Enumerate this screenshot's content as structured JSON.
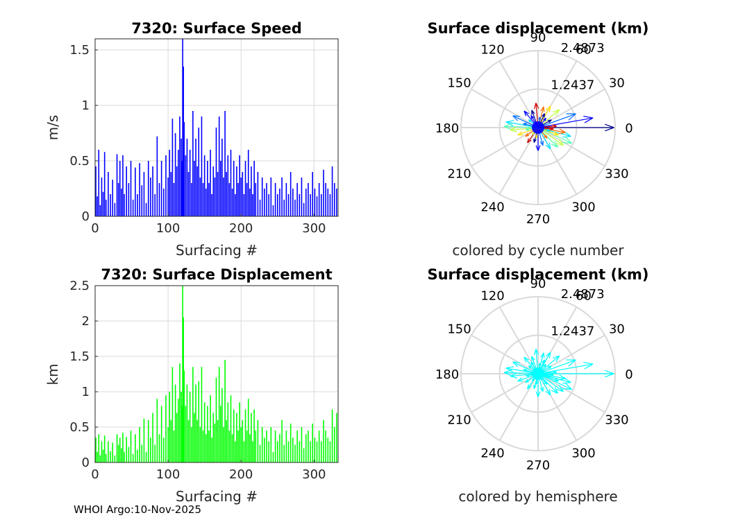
{
  "footer": "WHOI Argo:10-Nov-2025",
  "colors": {
    "speed_bars": "#0000ff",
    "displacement_bars": "#00ff00",
    "hemisphere_arrows": "#00ffff",
    "grid": "#d9d9d9"
  },
  "chart_data": [
    {
      "type": "bar",
      "title": "7320: Surface Speed",
      "xlabel": "Surfacing #",
      "ylabel": "m/s",
      "xlim": [
        0,
        333
      ],
      "ylim": [
        0,
        1.6
      ],
      "xticks": [
        0,
        100,
        200,
        300
      ],
      "yticks": [
        0,
        0.5,
        1,
        1.5
      ],
      "grid": true,
      "x": [
        1,
        3,
        5,
        7,
        9,
        11,
        13,
        15,
        18,
        21,
        24,
        27,
        30,
        32,
        34,
        36,
        38,
        40,
        43,
        46,
        49,
        52,
        55,
        58,
        61,
        64,
        67,
        70,
        73,
        76,
        79,
        82,
        85,
        88,
        91,
        94,
        97,
        100,
        102,
        104,
        106,
        108,
        110,
        112,
        114,
        116,
        118,
        119,
        120,
        121,
        122,
        124,
        126,
        128,
        130,
        132,
        134,
        136,
        138,
        140,
        142,
        144,
        146,
        148,
        150,
        152,
        154,
        156,
        158,
        160,
        162,
        164,
        166,
        168,
        170,
        172,
        174,
        176,
        178,
        180,
        182,
        184,
        186,
        188,
        190,
        192,
        194,
        196,
        198,
        200,
        202,
        204,
        206,
        208,
        210,
        212,
        214,
        216,
        218,
        220,
        223,
        226,
        229,
        232,
        235,
        238,
        241,
        244,
        247,
        250,
        253,
        256,
        259,
        262,
        265,
        268,
        271,
        274,
        277,
        280,
        283,
        286,
        289,
        292,
        295,
        298,
        301,
        304,
        307,
        310,
        313,
        316,
        319,
        322,
        325,
        328,
        331
      ],
      "values": [
        0.45,
        0.18,
        0.6,
        0.1,
        0.35,
        0.22,
        0.58,
        0.15,
        0.4,
        0.2,
        0.33,
        0.12,
        0.56,
        0.3,
        0.5,
        0.25,
        0.55,
        0.2,
        0.45,
        0.3,
        0.5,
        0.15,
        0.44,
        0.2,
        0.48,
        0.28,
        0.4,
        0.12,
        0.5,
        0.35,
        0.45,
        0.2,
        0.72,
        0.3,
        0.5,
        0.25,
        0.55,
        0.35,
        0.6,
        0.4,
        0.88,
        0.3,
        0.75,
        0.45,
        0.6,
        0.9,
        0.7,
        0.5,
        1.6,
        1.35,
        0.85,
        0.55,
        0.7,
        0.4,
        0.6,
        0.3,
        0.95,
        0.5,
        0.7,
        0.45,
        0.8,
        0.35,
        0.9,
        0.3,
        0.55,
        0.25,
        0.5,
        0.3,
        0.6,
        0.2,
        0.45,
        0.35,
        0.8,
        0.4,
        0.9,
        0.5,
        0.7,
        0.35,
        0.95,
        0.4,
        0.55,
        0.3,
        0.6,
        0.25,
        0.5,
        0.2,
        0.45,
        0.3,
        0.55,
        0.35,
        0.4,
        0.2,
        0.5,
        0.3,
        0.6,
        0.25,
        0.45,
        0.2,
        0.5,
        0.3,
        0.4,
        0.15,
        0.35,
        0.25,
        0.3,
        0.2,
        0.35,
        0.1,
        0.3,
        0.2,
        0.25,
        0.35,
        0.15,
        0.3,
        0.2,
        0.4,
        0.25,
        0.15,
        0.3,
        0.2,
        0.35,
        0.12,
        0.25,
        0.3,
        0.2,
        0.4,
        0.25,
        0.18,
        0.3,
        0.2,
        0.42,
        0.3,
        0.25,
        0.2,
        0.45,
        0.3,
        0.25
      ]
    },
    {
      "type": "bar",
      "title": "7320: Surface Displacement",
      "xlabel": "Surfacing #",
      "ylabel": "km",
      "xlim": [
        0,
        333
      ],
      "ylim": [
        0,
        2.5
      ],
      "xticks": [
        0,
        100,
        200,
        300
      ],
      "yticks": [
        0,
        0.5,
        1,
        1.5,
        2,
        2.5
      ],
      "grid": true,
      "x": [
        1,
        3,
        5,
        7,
        9,
        11,
        13,
        15,
        18,
        21,
        24,
        27,
        30,
        32,
        34,
        36,
        38,
        40,
        43,
        46,
        49,
        52,
        55,
        58,
        61,
        64,
        67,
        70,
        73,
        76,
        79,
        82,
        85,
        88,
        91,
        94,
        97,
        100,
        102,
        104,
        106,
        108,
        110,
        112,
        114,
        116,
        118,
        119,
        120,
        121,
        122,
        124,
        126,
        128,
        130,
        132,
        134,
        136,
        138,
        140,
        142,
        144,
        146,
        148,
        150,
        152,
        154,
        156,
        158,
        160,
        162,
        164,
        166,
        168,
        170,
        172,
        174,
        176,
        178,
        180,
        182,
        184,
        186,
        188,
        190,
        192,
        194,
        196,
        198,
        200,
        202,
        204,
        206,
        208,
        210,
        212,
        214,
        216,
        218,
        220,
        223,
        226,
        229,
        232,
        235,
        238,
        241,
        244,
        247,
        250,
        253,
        256,
        259,
        262,
        265,
        268,
        271,
        274,
        277,
        280,
        283,
        286,
        289,
        292,
        295,
        298,
        301,
        304,
        307,
        310,
        313,
        316,
        319,
        322,
        325,
        328,
        331
      ],
      "values": [
        0.35,
        0.15,
        0.4,
        0.1,
        0.3,
        0.18,
        0.38,
        0.12,
        0.3,
        0.16,
        0.28,
        0.1,
        0.4,
        0.25,
        0.35,
        0.2,
        0.42,
        0.15,
        0.36,
        0.22,
        0.45,
        0.12,
        0.4,
        0.18,
        0.5,
        0.25,
        0.62,
        0.15,
        0.6,
        0.35,
        0.7,
        0.25,
        0.9,
        0.4,
        0.8,
        0.35,
        0.95,
        0.5,
        1.0,
        0.6,
        1.35,
        0.45,
        1.1,
        0.7,
        0.9,
        1.4,
        1.0,
        0.8,
        2.5,
        2.05,
        1.3,
        0.8,
        1.1,
        0.6,
        1.0,
        0.5,
        1.35,
        0.7,
        1.1,
        0.6,
        1.15,
        0.5,
        1.35,
        0.45,
        0.85,
        0.4,
        0.8,
        0.45,
        0.95,
        0.35,
        0.7,
        0.55,
        1.2,
        0.6,
        1.35,
        0.8,
        1.05,
        0.5,
        1.45,
        0.6,
        0.85,
        0.45,
        0.95,
        0.4,
        0.75,
        0.3,
        0.7,
        0.45,
        0.85,
        0.5,
        0.6,
        0.3,
        0.75,
        0.45,
        0.9,
        0.4,
        0.7,
        0.3,
        0.75,
        0.45,
        0.6,
        0.25,
        0.5,
        0.35,
        0.45,
        0.3,
        0.5,
        0.15,
        0.45,
        0.3,
        0.4,
        0.6,
        0.25,
        0.45,
        0.3,
        0.55,
        0.35,
        0.25,
        0.45,
        0.3,
        0.5,
        0.2,
        0.4,
        0.45,
        0.3,
        0.55,
        0.35,
        0.3,
        0.45,
        0.3,
        0.6,
        0.45,
        0.35,
        0.3,
        0.75,
        0.5,
        0.7
      ]
    },
    {
      "type": "scatter",
      "subtype": "polar-compass",
      "title": "Surface displacement (km)",
      "caption": "colored by cycle number",
      "rlim": [
        0,
        2.4873
      ],
      "rticks": [
        "1.2437",
        "2.4873"
      ],
      "thetaticks": [
        "0",
        "30",
        "60",
        "90",
        "120",
        "150",
        "180",
        "210",
        "240",
        "270",
        "300",
        "330"
      ],
      "arrows_deg_km": [
        [
          0,
          2.45
        ],
        [
          10,
          1.8
        ],
        [
          20,
          1.3
        ],
        [
          -15,
          1.1
        ],
        [
          -25,
          1.2
        ],
        [
          40,
          0.9
        ],
        [
          60,
          0.8
        ],
        [
          75,
          0.7
        ],
        [
          95,
          0.8
        ],
        [
          110,
          0.6
        ],
        [
          130,
          0.7
        ],
        [
          155,
          0.9
        ],
        [
          170,
          1.05
        ],
        [
          178,
          1.1
        ],
        [
          185,
          0.9
        ],
        [
          200,
          0.7
        ],
        [
          215,
          0.5
        ],
        [
          235,
          0.6
        ],
        [
          255,
          0.5
        ],
        [
          270,
          0.75
        ],
        [
          285,
          0.6
        ],
        [
          300,
          0.8
        ],
        [
          315,
          0.9
        ],
        [
          325,
          1.0
        ],
        [
          340,
          0.7
        ],
        [
          350,
          0.9
        ],
        [
          5,
          0.6
        ],
        [
          30,
          0.5
        ],
        [
          50,
          0.4
        ],
        [
          80,
          0.35
        ],
        [
          140,
          0.4
        ],
        [
          190,
          0.4
        ],
        [
          230,
          0.3
        ],
        [
          260,
          0.35
        ],
        [
          310,
          0.45
        ],
        [
          355,
          0.5
        ],
        [
          65,
          0.5
        ],
        [
          120,
          0.45
        ],
        [
          165,
          0.5
        ],
        [
          345,
          0.4
        ]
      ],
      "palette": [
        "#00008f",
        "#0000ff",
        "#0070ff",
        "#00dfff",
        "#50ffaf",
        "#bfff40",
        "#ffdf00",
        "#ff7000",
        "#d00000"
      ]
    },
    {
      "type": "scatter",
      "subtype": "polar-compass",
      "title": "Surface displacement (km)",
      "caption": "colored by hemisphere",
      "rlim": [
        0,
        2.4873
      ],
      "rticks": [
        "1.2437",
        "2.4873"
      ],
      "thetaticks": [
        "0",
        "30",
        "60",
        "90",
        "120",
        "150",
        "180",
        "210",
        "240",
        "270",
        "300",
        "330"
      ],
      "arrows_deg_km": [
        [
          0,
          2.45
        ],
        [
          10,
          1.8
        ],
        [
          20,
          1.3
        ],
        [
          -15,
          1.1
        ],
        [
          -25,
          1.2
        ],
        [
          40,
          0.9
        ],
        [
          60,
          0.8
        ],
        [
          75,
          0.7
        ],
        [
          95,
          0.8
        ],
        [
          110,
          0.6
        ],
        [
          130,
          0.7
        ],
        [
          155,
          0.9
        ],
        [
          170,
          1.05
        ],
        [
          178,
          1.1
        ],
        [
          185,
          0.9
        ],
        [
          200,
          0.7
        ],
        [
          215,
          0.5
        ],
        [
          235,
          0.6
        ],
        [
          255,
          0.5
        ],
        [
          270,
          0.75
        ],
        [
          285,
          0.6
        ],
        [
          300,
          0.8
        ],
        [
          315,
          0.9
        ],
        [
          325,
          1.0
        ],
        [
          340,
          0.7
        ],
        [
          350,
          0.9
        ],
        [
          5,
          0.6
        ],
        [
          30,
          0.5
        ],
        [
          50,
          0.4
        ],
        [
          80,
          0.35
        ],
        [
          140,
          0.4
        ],
        [
          190,
          0.4
        ],
        [
          230,
          0.3
        ],
        [
          260,
          0.35
        ],
        [
          310,
          0.45
        ],
        [
          355,
          0.5
        ],
        [
          65,
          0.5
        ],
        [
          120,
          0.45
        ],
        [
          165,
          0.5
        ],
        [
          345,
          0.4
        ]
      ],
      "arrow_color": "#00ffff"
    }
  ]
}
